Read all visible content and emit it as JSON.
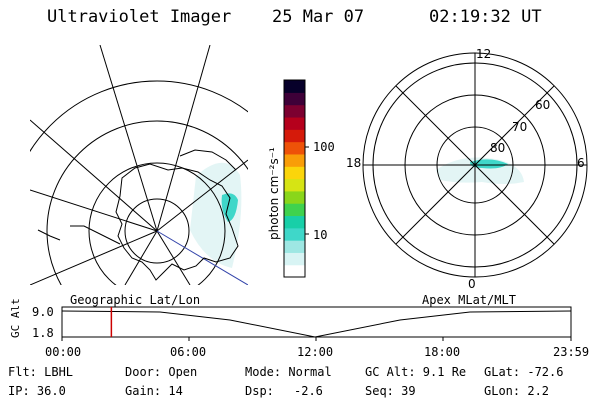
{
  "header": {
    "instrument": "Ultraviolet Imager",
    "date": "25 Mar 07",
    "time": "02:19:32 UT"
  },
  "colorbar": {
    "unit_label": "photon cm⁻²s⁻¹",
    "ticks": [
      "100",
      "10"
    ],
    "colors": [
      "#ffffff",
      "#d8f4f4",
      "#9ee7e3",
      "#3fd7c9",
      "#18cfa8",
      "#3fd24e",
      "#8ad61a",
      "#d6e414",
      "#fbd50b",
      "#f99d08",
      "#ee5208",
      "#d51a0a",
      "#b5001c",
      "#7c0030",
      "#3e0038",
      "#07002a"
    ]
  },
  "polar_plot": {
    "mlt_labels": {
      "top": "12",
      "left": "18",
      "right": "6",
      "bottom": "0"
    },
    "lat_labels": [
      "60",
      "70",
      "80"
    ]
  },
  "timeline": {
    "left_title": "Geographic Lat/Lon",
    "right_title": "Apex MLat/MLT",
    "axis_label": "GC Alt",
    "y_ticks": [
      "9.0",
      "1.8"
    ],
    "x_ticks": [
      "00:00",
      "06:00",
      "12:00",
      "18:00",
      "23:59"
    ],
    "current_time_fraction": 0.097
  },
  "info": {
    "filter": "Flt: LBHL",
    "ip": "IP: 36.0",
    "door": "Door: Open",
    "gain": "Gain: 14",
    "mode": "Mode: Normal",
    "dsp": "Dsp:",
    "dsp_value": "-2.6",
    "gc_alt": "GC Alt: 9.1 Re",
    "seq": "Seq: 39",
    "glat": "GLat: -72.6",
    "glon": "GLon:  2.2"
  }
}
